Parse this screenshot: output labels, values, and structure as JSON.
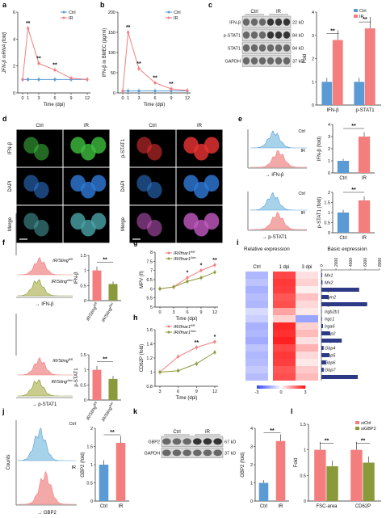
{
  "panel_letters": [
    "a",
    "b",
    "c",
    "d",
    "e",
    "f",
    "g",
    "h",
    "i",
    "j",
    "k",
    "l"
  ],
  "colors": {
    "ctrl": "#5b9bd5",
    "ir": "#f47d7d",
    "ko": "#8a9a3a",
    "koFill": "#c9cc8d",
    "ctrlFill": "#a6d3ea",
    "irFill": "#f4a9a9",
    "blot": "#2b2b2b"
  },
  "chart_data": [
    {
      "id": "a",
      "type": "line",
      "xlabel": "Time (dpi)",
      "ylabel": "JFN-β mRNA (fold)",
      "x": [
        0,
        1,
        3,
        6,
        9,
        12
      ],
      "ylim": [
        0,
        6
      ],
      "yticks": [
        0,
        2,
        4,
        6
      ],
      "series": [
        {
          "name": "Ctrl",
          "values": [
            1,
            1,
            1,
            1,
            1,
            1
          ]
        },
        {
          "name": "IR",
          "values": [
            1,
            4.8,
            2.2,
            1.7,
            1.1,
            1.0
          ]
        }
      ],
      "annotations": [
        {
          "x": 1,
          "text": "**"
        },
        {
          "x": 3,
          "text": "**"
        },
        {
          "x": 6,
          "text": "**"
        }
      ]
    },
    {
      "id": "b",
      "type": "line",
      "xlabel": "Time (dpi)",
      "ylabel": "IFN-β in BMEC (pg/ml)",
      "x": [
        0,
        1,
        3,
        6,
        9,
        12
      ],
      "ylim": [
        0,
        200
      ],
      "yticks": [
        0,
        50,
        100,
        150,
        200
      ],
      "series": [
        {
          "name": "Ctrl",
          "values": [
            5,
            5,
            5,
            5,
            5,
            5
          ]
        },
        {
          "name": "IR",
          "values": [
            5,
            150,
            60,
            25,
            10,
            6
          ]
        }
      ],
      "annotations": [
        {
          "x": 1,
          "text": "**"
        },
        {
          "x": 3,
          "text": "**"
        },
        {
          "x": 6,
          "text": "**"
        },
        {
          "x": 9,
          "text": "**"
        }
      ]
    },
    {
      "id": "c",
      "type": "bar",
      "categories": [
        "IFN-β",
        "p-STAT1"
      ],
      "ylabel": "Fold",
      "ylim": [
        0,
        4
      ],
      "yticks": [
        0,
        1,
        2,
        3,
        4
      ],
      "series": [
        {
          "name": "Ctrl",
          "values": [
            1,
            1
          ]
        },
        {
          "name": "IR",
          "values": [
            2.8,
            3.3
          ]
        }
      ],
      "annotations": [
        "**",
        "**"
      ]
    },
    {
      "id": "e1",
      "type": "bar",
      "categories": [
        "Ctrl",
        "IR"
      ],
      "ylabel": "IFN-β (fold)",
      "ylim": [
        0,
        4
      ],
      "yticks": [
        0,
        1,
        2,
        3,
        4
      ],
      "values": [
        1,
        3
      ],
      "annotation": "**"
    },
    {
      "id": "e2",
      "type": "bar",
      "categories": [
        "Ctrl",
        "IR"
      ],
      "ylabel": "p-STAT1 (fold)",
      "ylim": [
        0,
        2
      ],
      "yticks": [
        0.0,
        0.5,
        1.0,
        1.5,
        2.0
      ],
      "values": [
        1,
        1.6
      ],
      "annotation": "**"
    },
    {
      "id": "f1",
      "type": "bar",
      "categories": [
        "IR/Sting",
        "IR/Sting"
      ],
      "ylabel": "IFN-β",
      "ylim": [
        0,
        1.5
      ],
      "yticks": [
        0.0,
        0.5,
        1.0,
        1.5
      ],
      "values": [
        1,
        0.55
      ],
      "annotation": "**"
    },
    {
      "id": "f2",
      "type": "bar",
      "categories": [
        "IR/Sting",
        "IR/Sting"
      ],
      "ylabel": "p-STAT1",
      "ylim": [
        0,
        1.5
      ],
      "yticks": [
        0.0,
        0.5,
        1.0,
        1.5
      ],
      "values": [
        1,
        0.7
      ],
      "annotation": "**"
    },
    {
      "id": "g",
      "type": "line",
      "xlabel": "Time (dpi)",
      "ylabel": "MPV (fl)",
      "x": [
        0,
        3,
        6,
        9,
        12
      ],
      "ylim": [
        5,
        8
      ],
      "yticks": [
        5.0,
        5.5,
        6.0,
        6.5,
        7.0,
        7.5,
        8.0
      ],
      "series": [
        {
          "name": "IR/Ifnar1",
          "values": [
            6.0,
            6.1,
            6.6,
            7.0,
            7.3
          ]
        },
        {
          "name": "IR/Ifnar1",
          "values": [
            6.0,
            6.1,
            6.4,
            6.6,
            6.9
          ]
        }
      ],
      "annotations": [
        {
          "x": 6,
          "text": "*"
        },
        {
          "x": 9,
          "text": "*"
        },
        {
          "x": 12,
          "text": "**"
        }
      ]
    },
    {
      "id": "h",
      "type": "line",
      "xlabel": "Time (dpi)",
      "ylabel": "CD62P (fold)",
      "x": [
        3,
        6,
        9,
        12
      ],
      "ylim": [
        0.8,
        1.6
      ],
      "yticks": [
        0.8,
        1.0,
        1.2,
        1.4,
        1.6
      ],
      "series": [
        {
          "name": "IR/Ifnar1",
          "values": [
            1.0,
            1.22,
            1.35,
            1.43
          ]
        },
        {
          "name": "IR/Ifnar1",
          "values": [
            1.0,
            1.02,
            1.12,
            1.28
          ]
        }
      ],
      "annotations": [
        {
          "x": 9,
          "text": "**"
        },
        {
          "x": 12,
          "text": "*"
        }
      ]
    },
    {
      "id": "i",
      "type": "heatmap",
      "title_left": "Relative expression",
      "title_right": "Basic expression",
      "columns": [
        "Ctrl",
        "1 dpi",
        "3 dpi"
      ],
      "rows": [
        "Mx1",
        "Mx2",
        "Irgm1",
        "Irgm2",
        "Irgm3",
        "Irgb2b1",
        "Irgc1",
        "Irga6",
        "Gbp2",
        "Gbp3",
        "Gbp4",
        "Gbp5",
        "Gbp6",
        "Gbp7",
        "Gvin1"
      ],
      "values": [
        [
          -1.2,
          2.4,
          0.4
        ],
        [
          -1.0,
          2.6,
          0.6
        ],
        [
          -1.3,
          2.5,
          0.2
        ],
        [
          -1.1,
          2.2,
          0.8
        ],
        [
          -1.2,
          2.3,
          0.5
        ],
        [
          -0.6,
          1.2,
          0.3
        ],
        [
          -0.8,
          0.6,
          -1.5
        ],
        [
          -1.3,
          2.8,
          0.6
        ],
        [
          -1.2,
          2.7,
          0.9
        ],
        [
          -1.4,
          2.9,
          0.4
        ],
        [
          -1.0,
          2.4,
          1.0
        ],
        [
          -1.2,
          2.6,
          0.5
        ],
        [
          -1.1,
          2.5,
          0.3
        ],
        [
          -0.9,
          2.2,
          0.7
        ],
        [
          -1.1,
          2.3,
          0.9
        ]
      ],
      "scale": {
        "min": -3,
        "max": 3,
        "ticks": [
          -3,
          0,
          3
        ]
      },
      "basic": {
        "ticks": [
          0,
          2000,
          4000,
          6000,
          8000
        ],
        "values": [
          100,
          150,
          5200,
          1000,
          6300,
          50,
          80,
          220,
          1200,
          2800,
          300,
          1100,
          650,
          320,
          5000
        ]
      }
    },
    {
      "id": "j",
      "type": "bar",
      "categories": [
        "Ctrl",
        "IR"
      ],
      "ylabel": "GBP2 (fold)",
      "ylim": [
        0,
        2
      ],
      "yticks": [
        0.0,
        0.5,
        1.0,
        1.5,
        2.0
      ],
      "values": [
        1,
        1.6
      ],
      "annotation": "**"
    },
    {
      "id": "k",
      "type": "bar",
      "categories": [
        "Ctrl",
        "IR"
      ],
      "ylabel": "GBP2 (fold)",
      "ylim": [
        0,
        4
      ],
      "yticks": [
        0,
        1,
        2,
        3,
        4
      ],
      "values": [
        1,
        3.3
      ],
      "annotation": "**"
    },
    {
      "id": "l",
      "type": "bar",
      "categories": [
        "FSC-area",
        "CD62P"
      ],
      "ylabel": "Fold",
      "ylim": [
        0,
        1.5
      ],
      "yticks": [
        0.0,
        0.5,
        1.0,
        1.5
      ],
      "series": [
        {
          "name": "siCtrl",
          "values": [
            1,
            1
          ]
        },
        {
          "name": "siGBP2",
          "values": [
            0.68,
            0.75
          ]
        }
      ],
      "annotations": [
        "**",
        "**"
      ]
    }
  ],
  "blots": {
    "c": {
      "groups": [
        "Ctrl",
        "IR"
      ],
      "rows": [
        {
          "name": "IFN-β",
          "kd": "22 kD"
        },
        {
          "name": "p-STAT1",
          "kd": "84 kD"
        },
        {
          "name": "STAT1",
          "kd": "84 kD"
        },
        {
          "name": "GAPDH",
          "kd": "37 kD"
        }
      ]
    },
    "k": {
      "groups": [
        "Ctrl",
        "IR"
      ],
      "rows": [
        {
          "name": "GBP2",
          "kd": "67 kD"
        },
        {
          "name": "GAPDH",
          "kd": "37 kD"
        }
      ]
    }
  },
  "micro": {
    "cols": [
      "Ctrl",
      "IR",
      "Ctrl",
      "IR"
    ],
    "rows_left": [
      "IFN-β",
      "DAPI",
      "Merge"
    ],
    "rows_right": [
      "p-STAT1",
      "DAPI",
      "Merge"
    ]
  },
  "flow": {
    "e": {
      "top": [
        "Ctrl",
        "IR"
      ],
      "bot": [
        "Ctrl",
        "IR"
      ],
      "xlab_top": "IFN-β",
      "xlab_bot": "p-STAT1"
    },
    "f": {
      "top": [
        "IR/Sting",
        "IR/Sting"
      ],
      "bot": [
        "IR/Sting",
        "IR/Sting"
      ],
      "xlab_top": "IFN-β",
      "xlab_bot": "p-STAT1"
    },
    "j": {
      "top": [
        "Ctrl",
        "IR"
      ],
      "xlab": "GBP2",
      "ylab": "Counts"
    }
  }
}
